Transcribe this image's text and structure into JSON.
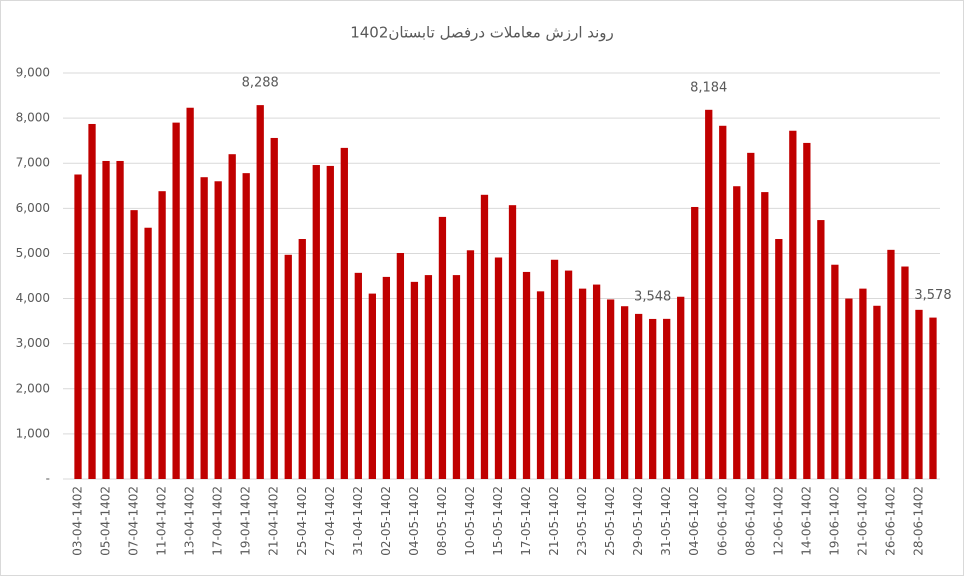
{
  "chart_data": {
    "type": "bar",
    "title": "روند ارزش معاملات درفصل تابستان1402",
    "categories": [
      "03-04-1402",
      null,
      "05-04-1402",
      null,
      "07-04-1402",
      null,
      "11-04-1402",
      null,
      "13-04-1402",
      null,
      "17-04-1402",
      null,
      "19-04-1402",
      null,
      "21-04-1402",
      null,
      "25-04-1402",
      null,
      "27-04-1402",
      null,
      "31-04-1402",
      null,
      "02-05-1402",
      null,
      "04-05-1402",
      null,
      "08-05-1402",
      null,
      "10-05-1402",
      null,
      "15-05-1402",
      null,
      "17-05-1402",
      null,
      "21-05-1402",
      null,
      "23-05-1402",
      null,
      "25-05-1402",
      null,
      "29-05-1402",
      null,
      "31-05-1402",
      null,
      "04-06-1402",
      null,
      "06-06-1402",
      null,
      "08-06-1402",
      null,
      "12-06-1402",
      null,
      "14-06-1402",
      null,
      "19-06-1402",
      null,
      "21-06-1402",
      null,
      "26-06-1402",
      null,
      "28-06-1402",
      null
    ],
    "values": [
      6750,
      7870,
      7050,
      7050,
      5960,
      5570,
      6380,
      7900,
      8230,
      6690,
      6600,
      7200,
      6780,
      8288,
      7560,
      4970,
      5320,
      6960,
      6940,
      7340,
      4570,
      4110,
      4480,
      5010,
      4370,
      4520,
      5810,
      4520,
      5070,
      6300,
      4910,
      6070,
      4590,
      4160,
      4860,
      4620,
      4220,
      4310,
      3980,
      3830,
      3660,
      3548,
      3550,
      4040,
      6030,
      8184,
      7830,
      6490,
      7230,
      6360,
      5320,
      7720,
      7450,
      5740,
      4750,
      4000,
      4220,
      3840,
      5080,
      4710,
      3750,
      3578
    ],
    "value_labels": [
      null,
      null,
      null,
      null,
      null,
      null,
      null,
      null,
      null,
      null,
      null,
      null,
      null,
      "8,288",
      null,
      null,
      null,
      null,
      null,
      null,
      null,
      null,
      null,
      null,
      null,
      null,
      null,
      null,
      null,
      null,
      null,
      null,
      null,
      null,
      null,
      null,
      null,
      null,
      null,
      null,
      null,
      "3,548",
      null,
      null,
      null,
      "8,184",
      null,
      null,
      null,
      null,
      null,
      null,
      null,
      null,
      null,
      null,
      null,
      null,
      null,
      null,
      null,
      "3,578"
    ],
    "color": "#c00000",
    "ylim": [
      0,
      9000
    ],
    "yticks": [
      {
        "value": 0,
        "label": "-"
      },
      {
        "value": 1000,
        "label": "1,000"
      },
      {
        "value": 2000,
        "label": "2,000"
      },
      {
        "value": 3000,
        "label": "3,000"
      },
      {
        "value": 4000,
        "label": "4,000"
      },
      {
        "value": 5000,
        "label": "5,000"
      },
      {
        "value": 6000,
        "label": "6,000"
      },
      {
        "value": 7000,
        "label": "7,000"
      },
      {
        "value": 8000,
        "label": "8,000"
      },
      {
        "value": 9000,
        "label": "9,000"
      }
    ],
    "grid": true
  }
}
